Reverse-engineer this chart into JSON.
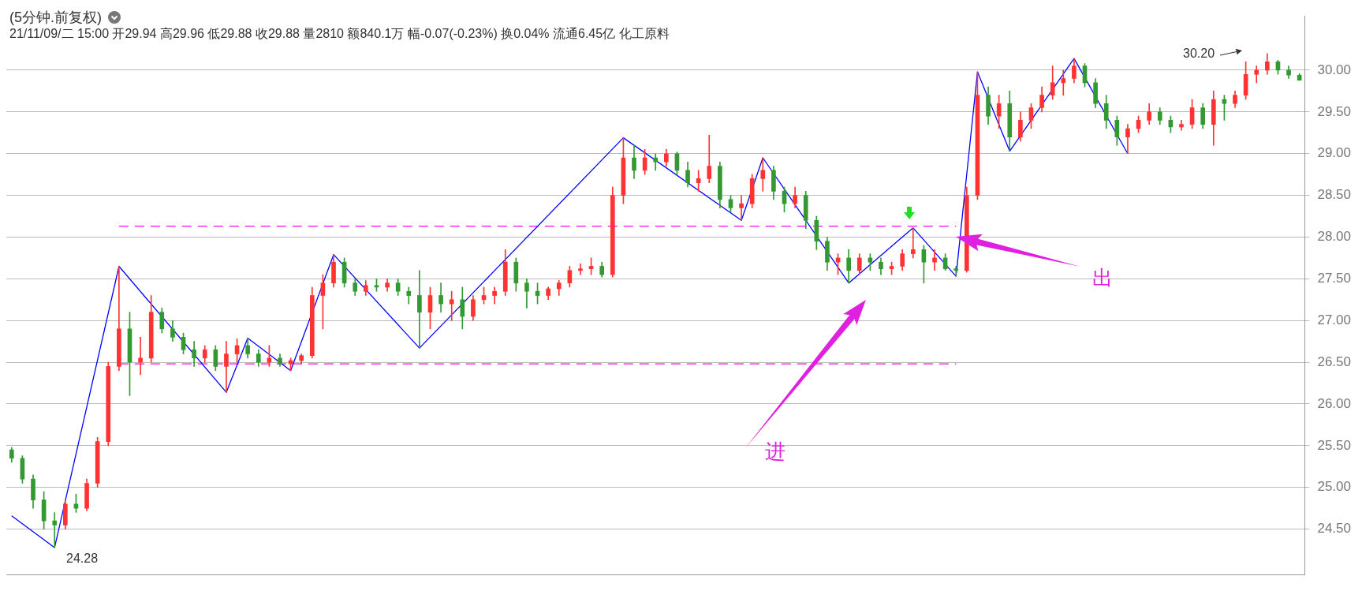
{
  "chart_data": {
    "type": "candlestick",
    "title": "(5分钟.前复权)",
    "subtitle": "21/11/09/二 15:00 开29.94 高29.96 低29.88 收29.88 量2810 额840.1万 幅-0.07(-0.23%) 换0.04% 流通6.45亿 化工原料",
    "categories": [
      null,
      null,
      null,
      null,
      null,
      null,
      null,
      null,
      null,
      null,
      null,
      null,
      null,
      null,
      null,
      null,
      null,
      null,
      null,
      null,
      null,
      null,
      null,
      null,
      null,
      null,
      null,
      null,
      null,
      null,
      null,
      null,
      null,
      null,
      null,
      null,
      null,
      null,
      null,
      null,
      null,
      null,
      null,
      null,
      null,
      null,
      null,
      null,
      null,
      null,
      null,
      null,
      null,
      null,
      null,
      null,
      null,
      null,
      null,
      null,
      null,
      null,
      null,
      null,
      null,
      null,
      null,
      null,
      null,
      null,
      null,
      null,
      null,
      null,
      null,
      null,
      null,
      null,
      null,
      null,
      null,
      null,
      null,
      null,
      null,
      null,
      null,
      null,
      null,
      null,
      null,
      null,
      null,
      null,
      null,
      null,
      null,
      null,
      null,
      null,
      null,
      null,
      null,
      null,
      null,
      null,
      null,
      null,
      null,
      null,
      null,
      null,
      null,
      null,
      null,
      null,
      null,
      null,
      null,
      null,
      null
    ],
    "ohlc": [
      [
        25.45,
        25.48,
        25.3,
        25.35
      ],
      [
        25.35,
        25.38,
        25.05,
        25.1
      ],
      [
        25.1,
        25.15,
        24.75,
        24.85
      ],
      [
        24.85,
        24.95,
        24.5,
        24.6
      ],
      [
        24.6,
        24.7,
        24.28,
        24.55
      ],
      [
        24.55,
        24.85,
        24.5,
        24.8
      ],
      [
        24.8,
        24.92,
        24.7,
        24.75
      ],
      [
        24.75,
        25.1,
        24.72,
        25.05
      ],
      [
        25.05,
        25.6,
        25.0,
        25.55
      ],
      [
        25.55,
        26.5,
        25.5,
        26.45
      ],
      [
        26.45,
        27.65,
        26.4,
        26.9
      ],
      [
        26.9,
        27.1,
        26.1,
        26.5
      ],
      [
        26.5,
        26.8,
        26.35,
        26.55
      ],
      [
        26.55,
        27.3,
        26.5,
        27.1
      ],
      [
        27.1,
        27.15,
        26.85,
        26.9
      ],
      [
        26.9,
        27.0,
        26.75,
        26.8
      ],
      [
        26.8,
        26.85,
        26.6,
        26.65
      ],
      [
        26.65,
        26.75,
        26.45,
        26.55
      ],
      [
        26.55,
        26.7,
        26.5,
        26.65
      ],
      [
        26.65,
        26.7,
        26.4,
        26.45
      ],
      [
        26.45,
        26.75,
        26.14,
        26.6
      ],
      [
        26.6,
        26.78,
        26.5,
        26.7
      ],
      [
        26.7,
        26.79,
        26.55,
        26.6
      ],
      [
        26.6,
        26.65,
        26.45,
        26.5
      ],
      [
        26.5,
        26.7,
        26.45,
        26.55
      ],
      [
        26.55,
        26.6,
        26.45,
        26.48
      ],
      [
        26.48,
        26.55,
        26.4,
        26.52
      ],
      [
        26.52,
        26.6,
        26.48,
        26.58
      ],
      [
        26.58,
        27.4,
        26.55,
        27.3
      ],
      [
        27.3,
        27.55,
        26.9,
        27.45
      ],
      [
        27.45,
        27.79,
        27.4,
        27.7
      ],
      [
        27.7,
        27.75,
        27.4,
        27.45
      ],
      [
        27.45,
        27.5,
        27.3,
        27.35
      ],
      [
        27.35,
        27.48,
        27.3,
        27.42
      ],
      [
        27.42,
        27.5,
        27.35,
        27.4
      ],
      [
        27.4,
        27.5,
        27.35,
        27.45
      ],
      [
        27.45,
        27.5,
        27.3,
        27.35
      ],
      [
        27.35,
        27.4,
        27.2,
        27.3
      ],
      [
        27.3,
        27.6,
        26.67,
        27.1
      ],
      [
        27.1,
        27.4,
        26.9,
        27.3
      ],
      [
        27.3,
        27.45,
        27.1,
        27.2
      ],
      [
        27.2,
        27.35,
        27.0,
        27.25
      ],
      [
        27.25,
        27.4,
        26.9,
        27.05
      ],
      [
        27.05,
        27.3,
        27.0,
        27.25
      ],
      [
        27.25,
        27.4,
        27.2,
        27.3
      ],
      [
        27.3,
        27.4,
        27.2,
        27.35
      ],
      [
        27.35,
        27.85,
        27.3,
        27.7
      ],
      [
        27.7,
        27.75,
        27.35,
        27.45
      ],
      [
        27.45,
        27.5,
        27.15,
        27.35
      ],
      [
        27.35,
        27.45,
        27.2,
        27.3
      ],
      [
        27.3,
        27.4,
        27.25,
        27.38
      ],
      [
        27.38,
        27.48,
        27.3,
        27.45
      ],
      [
        27.45,
        27.65,
        27.4,
        27.6
      ],
      [
        27.6,
        27.68,
        27.55,
        27.62
      ],
      [
        27.62,
        27.75,
        27.55,
        27.65
      ],
      [
        27.65,
        27.7,
        27.52,
        27.55
      ],
      [
        27.55,
        28.6,
        27.52,
        28.5
      ],
      [
        28.5,
        29.19,
        28.4,
        28.95
      ],
      [
        28.95,
        29.1,
        28.7,
        28.8
      ],
      [
        28.8,
        29.05,
        28.75,
        28.95
      ],
      [
        28.95,
        29.0,
        28.8,
        28.9
      ],
      [
        28.9,
        29.05,
        28.85,
        29.0
      ],
      [
        29.0,
        29.02,
        28.75,
        28.8
      ],
      [
        28.8,
        28.9,
        28.6,
        28.65
      ],
      [
        28.65,
        28.8,
        28.55,
        28.7
      ],
      [
        28.7,
        29.22,
        28.65,
        28.85
      ],
      [
        28.85,
        28.9,
        28.35,
        28.45
      ],
      [
        28.45,
        28.5,
        28.3,
        28.35
      ],
      [
        28.35,
        28.5,
        28.2,
        28.4
      ],
      [
        28.4,
        28.75,
        28.35,
        28.7
      ],
      [
        28.7,
        28.95,
        28.55,
        28.8
      ],
      [
        28.8,
        28.85,
        28.45,
        28.55
      ],
      [
        28.55,
        28.6,
        28.3,
        28.4
      ],
      [
        28.4,
        28.6,
        28.35,
        28.5
      ],
      [
        28.5,
        28.55,
        28.1,
        28.2
      ],
      [
        28.2,
        28.25,
        27.85,
        27.95
      ],
      [
        27.95,
        28.0,
        27.6,
        27.7
      ],
      [
        27.7,
        27.8,
        27.55,
        27.75
      ],
      [
        27.75,
        27.85,
        27.45,
        27.6
      ],
      [
        27.6,
        27.8,
        27.55,
        27.75
      ],
      [
        27.75,
        27.8,
        27.6,
        27.7
      ],
      [
        27.7,
        27.75,
        27.55,
        27.62
      ],
      [
        27.62,
        27.7,
        27.55,
        27.65
      ],
      [
        27.65,
        27.85,
        27.6,
        27.8
      ],
      [
        27.8,
        28.11,
        27.75,
        27.85
      ],
      [
        27.85,
        27.9,
        27.45,
        27.7
      ],
      [
        27.7,
        27.85,
        27.6,
        27.75
      ],
      [
        27.75,
        27.8,
        27.6,
        27.62
      ],
      [
        27.62,
        27.65,
        27.53,
        27.6
      ],
      [
        27.6,
        28.6,
        27.58,
        28.5
      ],
      [
        28.5,
        29.98,
        28.45,
        29.7
      ],
      [
        29.7,
        29.8,
        29.35,
        29.45
      ],
      [
        29.45,
        29.7,
        29.3,
        29.6
      ],
      [
        29.6,
        29.75,
        29.03,
        29.2
      ],
      [
        29.2,
        29.5,
        29.15,
        29.4
      ],
      [
        29.4,
        29.6,
        29.3,
        29.55
      ],
      [
        29.55,
        29.8,
        29.5,
        29.7
      ],
      [
        29.7,
        30.05,
        29.65,
        29.85
      ],
      [
        29.85,
        30.0,
        29.7,
        29.9
      ],
      [
        29.9,
        30.14,
        29.85,
        30.05
      ],
      [
        30.05,
        30.08,
        29.8,
        29.85
      ],
      [
        29.85,
        29.9,
        29.55,
        29.6
      ],
      [
        29.6,
        29.7,
        29.3,
        29.4
      ],
      [
        29.4,
        29.45,
        29.1,
        29.2
      ],
      [
        29.2,
        29.35,
        29.0,
        29.3
      ],
      [
        29.3,
        29.45,
        29.25,
        29.4
      ],
      [
        29.4,
        29.6,
        29.35,
        29.5
      ],
      [
        29.5,
        29.55,
        29.35,
        29.4
      ],
      [
        29.4,
        29.45,
        29.25,
        29.32
      ],
      [
        29.32,
        29.4,
        29.28,
        29.35
      ],
      [
        29.35,
        29.65,
        29.3,
        29.55
      ],
      [
        29.55,
        29.6,
        29.3,
        29.35
      ],
      [
        29.35,
        29.75,
        29.1,
        29.65
      ],
      [
        29.65,
        29.7,
        29.4,
        29.6
      ],
      [
        29.6,
        29.75,
        29.55,
        29.7
      ],
      [
        29.7,
        30.1,
        29.65,
        29.95
      ],
      [
        29.95,
        30.05,
        29.85,
        30.0
      ],
      [
        30.0,
        30.2,
        29.95,
        30.1
      ],
      [
        30.1,
        30.12,
        29.95,
        30.0
      ],
      [
        30.0,
        30.05,
        29.9,
        29.94
      ],
      [
        29.94,
        29.96,
        29.88,
        29.88
      ]
    ],
    "colors": [
      "#339933",
      "#339933",
      "#339933",
      "#339933",
      "#339933",
      "#ff3333",
      "#339933",
      "#ff3333",
      "#ff3333",
      "#ff3333",
      "#ff3333",
      "#339933",
      "#ff3333",
      "#ff3333",
      "#339933",
      "#339933",
      "#339933",
      "#339933",
      "#ff3333",
      "#339933",
      "#ff3333",
      "#ff3333",
      "#339933",
      "#339933",
      "#ff3333",
      "#339933",
      "#ff3333",
      "#ff3333",
      "#ff3333",
      "#ff3333",
      "#ff3333",
      "#339933",
      "#339933",
      "#ff3333",
      "#339933",
      "#ff3333",
      "#339933",
      "#339933",
      "#339933",
      "#ff3333",
      "#339933",
      "#ff3333",
      "#339933",
      "#ff3333",
      "#ff3333",
      "#ff3333",
      "#ff3333",
      "#339933",
      "#339933",
      "#339933",
      "#ff3333",
      "#ff3333",
      "#ff3333",
      "#ff3333",
      "#ff3333",
      "#339933",
      "#ff3333",
      "#ff3333",
      "#339933",
      "#ff3333",
      "#339933",
      "#ff3333",
      "#339933",
      "#339933",
      "#ff3333",
      "#ff3333",
      "#339933",
      "#339933",
      "#ff3333",
      "#ff3333",
      "#ff3333",
      "#339933",
      "#339933",
      "#ff3333",
      "#339933",
      "#339933",
      "#339933",
      "#ff3333",
      "#339933",
      "#ff3333",
      "#339933",
      "#339933",
      "#ff3333",
      "#ff3333",
      "#ff3333",
      "#339933",
      "#ff3333",
      "#339933",
      "#339933",
      "#ff3333",
      "#ff3333",
      "#339933",
      "#ff3333",
      "#339933",
      "#ff3333",
      "#ff3333",
      "#ff3333",
      "#ff3333",
      "#ff3333",
      "#ff3333",
      "#339933",
      "#339933",
      "#339933",
      "#339933",
      "#ff3333",
      "#ff3333",
      "#ff3333",
      "#339933",
      "#339933",
      "#ff3333",
      "#ff3333",
      "#339933",
      "#ff3333",
      "#339933",
      "#ff3333",
      "#ff3333",
      "#ff3333",
      "#ff3333",
      "#339933",
      "#339933",
      "#339933"
    ],
    "series": [
      {
        "type": "line",
        "color": "#0000ff",
        "values": [
          24.66,
          null,
          null,
          null,
          24.28,
          null,
          null,
          null,
          null,
          null,
          27.65,
          null,
          null,
          null,
          null,
          null,
          null,
          null,
          null,
          null,
          26.14,
          null,
          26.79,
          null,
          null,
          null,
          26.4,
          null,
          null,
          null,
          27.79,
          null,
          null,
          null,
          null,
          null,
          null,
          null,
          26.67,
          null,
          null,
          null,
          null,
          null,
          null,
          null,
          null,
          null,
          null,
          null,
          null,
          null,
          null,
          null,
          null,
          null,
          null,
          29.19,
          null,
          null,
          null,
          null,
          null,
          null,
          null,
          null,
          null,
          null,
          28.2,
          null,
          28.95,
          null,
          null,
          null,
          null,
          null,
          null,
          null,
          27.45,
          null,
          null,
          null,
          null,
          null,
          28.11,
          null,
          null,
          null,
          27.53,
          null,
          29.98,
          null,
          null,
          29.03,
          null,
          null,
          null,
          null,
          null,
          30.14,
          null,
          null,
          null,
          null,
          29.0,
          null,
          null,
          null,
          null,
          null,
          null,
          null,
          null,
          null,
          null,
          null,
          null,
          null,
          null,
          null,
          null
        ]
      },
      {
        "type": "line",
        "color": "#ff00ff",
        "line_style": "dashed",
        "values": [
          null,
          null,
          null,
          null,
          null,
          null,
          null,
          null,
          null,
          null,
          28.13,
          null,
          null,
          null,
          null,
          null,
          null,
          null,
          null,
          null,
          null,
          null,
          null,
          null,
          null,
          null,
          null,
          null,
          null,
          null,
          null,
          null,
          null,
          null,
          null,
          null,
          null,
          null,
          null,
          null,
          null,
          null,
          null,
          null,
          null,
          null,
          null,
          null,
          null,
          null,
          null,
          null,
          null,
          null,
          null,
          null,
          null,
          null,
          null,
          null,
          null,
          null,
          null,
          null,
          null,
          null,
          null,
          null,
          null,
          null,
          null,
          null,
          null,
          null,
          null,
          null,
          null,
          null,
          null,
          null,
          null,
          null,
          null,
          null,
          null,
          null,
          null,
          null,
          28.13,
          null,
          null,
          null,
          null,
          null,
          null,
          null,
          null,
          null,
          null,
          null,
          null,
          null,
          null,
          null,
          null,
          null,
          null,
          null,
          null,
          null,
          null,
          null,
          null,
          null,
          null,
          null,
          null,
          null,
          null,
          null,
          null
        ]
      },
      {
        "type": "line",
        "color": "#ff00ff",
        "line_style": "dashed",
        "values": [
          null,
          null,
          null,
          null,
          null,
          null,
          null,
          null,
          null,
          null,
          26.48,
          null,
          null,
          null,
          null,
          null,
          null,
          null,
          null,
          null,
          null,
          null,
          null,
          null,
          null,
          null,
          null,
          null,
          null,
          null,
          null,
          null,
          null,
          null,
          null,
          null,
          null,
          null,
          null,
          null,
          null,
          null,
          null,
          null,
          null,
          null,
          null,
          null,
          null,
          null,
          null,
          null,
          null,
          null,
          null,
          null,
          null,
          null,
          null,
          null,
          null,
          null,
          null,
          null,
          null,
          null,
          null,
          null,
          null,
          null,
          null,
          null,
          null,
          null,
          null,
          null,
          null,
          null,
          null,
          null,
          null,
          null,
          null,
          null,
          null,
          null,
          null,
          null,
          26.48,
          null,
          null,
          null,
          null,
          null,
          null,
          null,
          null,
          null,
          null,
          null,
          null,
          null,
          null,
          null,
          null,
          null,
          null,
          null,
          null,
          null,
          null,
          null,
          null,
          null,
          null,
          null,
          null,
          null,
          null,
          null,
          null
        ]
      }
    ],
    "annotations": [
      "24.28",
      "30.20",
      "进",
      "出"
    ],
    "ylim": [
      23.95,
      30.65
    ],
    "yticks": [
      {
        "value": 24.5,
        "label": "24.50"
      },
      {
        "value": 25,
        "label": "25.00"
      },
      {
        "value": 25.5,
        "label": "25.50"
      },
      {
        "value": 26,
        "label": "26.00"
      },
      {
        "value": 26.5,
        "label": "26.50"
      },
      {
        "value": 27,
        "label": "27.00"
      },
      {
        "value": 27.5,
        "label": "27.50"
      },
      {
        "value": 28,
        "label": "28.00"
      },
      {
        "value": 28.5,
        "label": "28.50"
      },
      {
        "value": 29,
        "label": "29.00"
      },
      {
        "value": 29.5,
        "label": "29.50"
      },
      {
        "value": 30,
        "label": "30.00"
      }
    ],
    "grid": "y",
    "tick_labels": "y",
    "legend": false
  }
}
